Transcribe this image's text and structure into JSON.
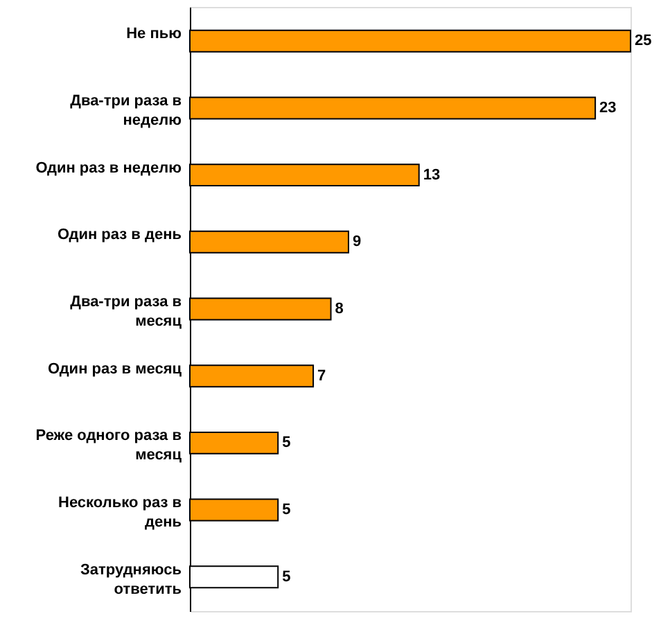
{
  "chart_data": {
    "type": "bar",
    "orientation": "horizontal",
    "data_labels": true,
    "categories": [
      "Не пью",
      "Два-три раза в неделю",
      "Один раз в неделю",
      "Один раз в день",
      "Два-три раза в месяц",
      "Один раз в месяц",
      "Реже одного раза в месяц",
      "Несколько раз в день",
      "Затрудняюсь ответить"
    ],
    "values": [
      25,
      23,
      13,
      9,
      8,
      7,
      5,
      5,
      5
    ],
    "colors": [
      "#ff9900",
      "#ff9900",
      "#ff9900",
      "#ff9900",
      "#ff9900",
      "#ff9900",
      "#ff9900",
      "#ff9900",
      "#ffffff"
    ]
  }
}
